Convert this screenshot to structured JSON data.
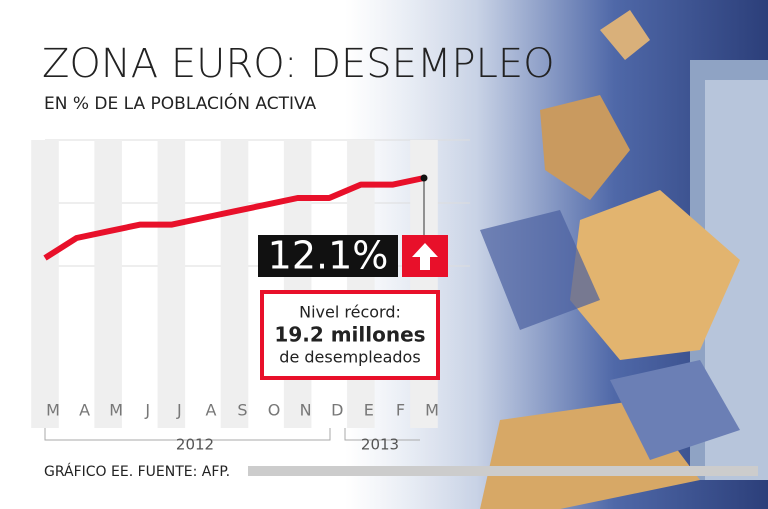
{
  "chart_data": {
    "type": "line",
    "title": "ZONA EURO: DESEMPLEO",
    "subtitle": "EN % DE LA POBLACIÓN ACTIVA",
    "categories": [
      "M",
      "A",
      "M",
      "J",
      "J",
      "A",
      "S",
      "O",
      "N",
      "D",
      "E",
      "F",
      "M"
    ],
    "years": [
      "2012",
      "2013"
    ],
    "values": [
      10.9,
      11.2,
      11.3,
      11.4,
      11.4,
      11.5,
      11.6,
      11.7,
      11.8,
      11.8,
      12.0,
      12.0,
      12.1
    ],
    "value_labels": [
      null,
      null,
      null,
      null,
      null,
      null,
      null,
      null,
      null,
      null,
      null,
      null,
      "12.1%"
    ],
    "color": "#e8102a",
    "annotation": [
      "Nivel récord:",
      "19.2 millones",
      "de desempleados"
    ],
    "source": "GRÁFICO EE. FUENTE: AFP."
  }
}
